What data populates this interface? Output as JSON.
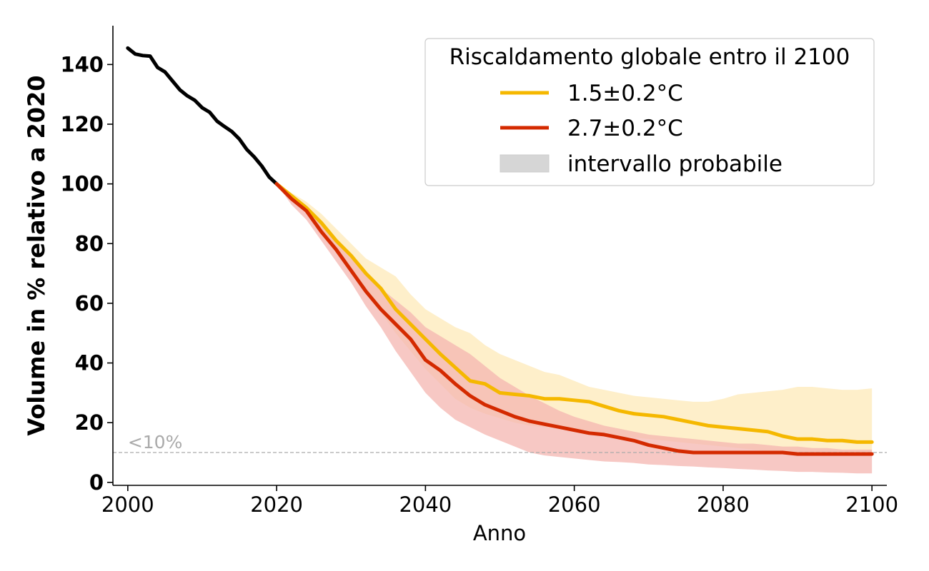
{
  "chart_data": {
    "type": "line",
    "title": "",
    "xlabel": "Anno",
    "ylabel": "Volume in % relativo a 2020",
    "xlim": [
      1998,
      2102
    ],
    "ylim": [
      -1,
      153
    ],
    "xticks": [
      "2000",
      "2020",
      "2040",
      "2060",
      "2080",
      "2100"
    ],
    "yticks": [
      "0",
      "20",
      "40",
      "60",
      "80",
      "100",
      "120",
      "140"
    ],
    "legend": {
      "title": "Riscaldamento globale entro il 2100",
      "position": "top-right",
      "entries": [
        "1.5±0.2°C",
        "2.7±0.2°C",
        "intervallo probabile"
      ]
    },
    "threshold": {
      "y": 10,
      "label": "<10%",
      "color": "#aaaaaa"
    },
    "colors": {
      "historical": "#000000",
      "low": "#f5b800",
      "high": "#d42a00",
      "low_band": "#fde9b8",
      "high_band": "#f4b5b0",
      "legend_band": "#d6d6d6"
    },
    "series": [
      {
        "key": "historical",
        "x": [
          2000,
          2001,
          2002,
          2003,
          2004,
          2005,
          2006,
          2007,
          2008,
          2009,
          2010,
          2011,
          2012,
          2013,
          2014,
          2015,
          2016,
          2017,
          2018,
          2019,
          2020
        ],
        "values": [
          145.5,
          143.5,
          143,
          142.8,
          139,
          137.5,
          134.5,
          131.5,
          129.5,
          128,
          125.5,
          124,
          121,
          119.2,
          117.5,
          115,
          111.5,
          109,
          106,
          102.3,
          100
        ]
      },
      {
        "key": "low",
        "name": "1.5±0.2°C",
        "x": [
          2020,
          2022,
          2024,
          2026,
          2028,
          2030,
          2032,
          2034,
          2036,
          2038,
          2040,
          2042,
          2044,
          2046,
          2048,
          2050,
          2052,
          2054,
          2056,
          2058,
          2060,
          2062,
          2064,
          2066,
          2068,
          2070,
          2072,
          2074,
          2076,
          2078,
          2080,
          2082,
          2084,
          2086,
          2088,
          2090,
          2092,
          2094,
          2096,
          2098,
          2100
        ],
        "values": [
          100,
          96,
          92,
          87,
          81,
          76,
          70,
          65,
          58,
          53,
          48,
          43,
          38.5,
          34,
          33,
          30,
          29.5,
          29,
          28,
          28,
          27.5,
          27,
          25.5,
          24,
          23,
          22.5,
          22,
          21,
          20,
          19,
          18.5,
          18,
          17.5,
          17,
          15.5,
          14.5,
          14.5,
          14,
          14,
          13.5,
          13.5
        ],
        "upper": [
          100,
          97,
          94,
          90,
          85,
          80,
          75,
          72,
          69,
          63,
          58,
          55,
          52,
          50,
          46,
          43,
          41,
          39,
          37,
          36,
          34,
          32,
          31,
          30,
          29,
          28.5,
          28,
          27.5,
          27,
          27,
          28,
          29.5,
          30,
          30.5,
          31,
          32,
          32,
          31.5,
          31,
          31,
          31.5
        ],
        "lower": [
          100,
          95,
          90,
          83,
          77,
          71,
          64,
          57,
          50,
          44,
          38,
          33,
          28,
          25,
          23,
          21.5,
          20,
          19,
          18.5,
          18,
          17,
          16.5,
          16,
          15.5,
          15,
          14.5,
          14,
          13.5,
          13,
          12.5,
          12,
          11.5,
          11,
          10.5,
          10,
          9.5,
          9,
          9,
          9,
          9,
          9
        ]
      },
      {
        "key": "high",
        "name": "2.7±0.2°C",
        "x": [
          2020,
          2022,
          2024,
          2026,
          2028,
          2030,
          2032,
          2034,
          2036,
          2038,
          2040,
          2042,
          2044,
          2046,
          2048,
          2050,
          2052,
          2054,
          2056,
          2058,
          2060,
          2062,
          2064,
          2066,
          2068,
          2070,
          2072,
          2074,
          2076,
          2078,
          2080,
          2082,
          2084,
          2086,
          2088,
          2090,
          2092,
          2094,
          2096,
          2098,
          2100
        ],
        "values": [
          100,
          95,
          91,
          84,
          78,
          71,
          64,
          58,
          53,
          48,
          41,
          37.5,
          33,
          29,
          26,
          24,
          22,
          20.5,
          19.5,
          18.5,
          17.5,
          16.5,
          16,
          15,
          14,
          12.5,
          11.5,
          10.5,
          10,
          10,
          10,
          10,
          10,
          10,
          10,
          9.5,
          9.5,
          9.5,
          9.5,
          9.5,
          9.5
        ],
        "upper": [
          100,
          96,
          92,
          86,
          81,
          75,
          70,
          65,
          61,
          57,
          52,
          49,
          46,
          43,
          39,
          35,
          32,
          29,
          26.5,
          24,
          22,
          20.5,
          19,
          18,
          17,
          16,
          15.5,
          15,
          14.5,
          14,
          13.5,
          13,
          13,
          12.5,
          12,
          12,
          11.5,
          11.5,
          11,
          11,
          11
        ],
        "lower": [
          100,
          93,
          88,
          81,
          74,
          67,
          59,
          52,
          44,
          37,
          30,
          25,
          21,
          18.5,
          16,
          14,
          12,
          10,
          9,
          8.5,
          8,
          7.5,
          7,
          6.8,
          6.5,
          6,
          5.8,
          5.5,
          5.3,
          5,
          4.8,
          4.5,
          4.3,
          4,
          3.8,
          3.5,
          3.5,
          3.3,
          3.2,
          3,
          3
        ]
      }
    ]
  }
}
